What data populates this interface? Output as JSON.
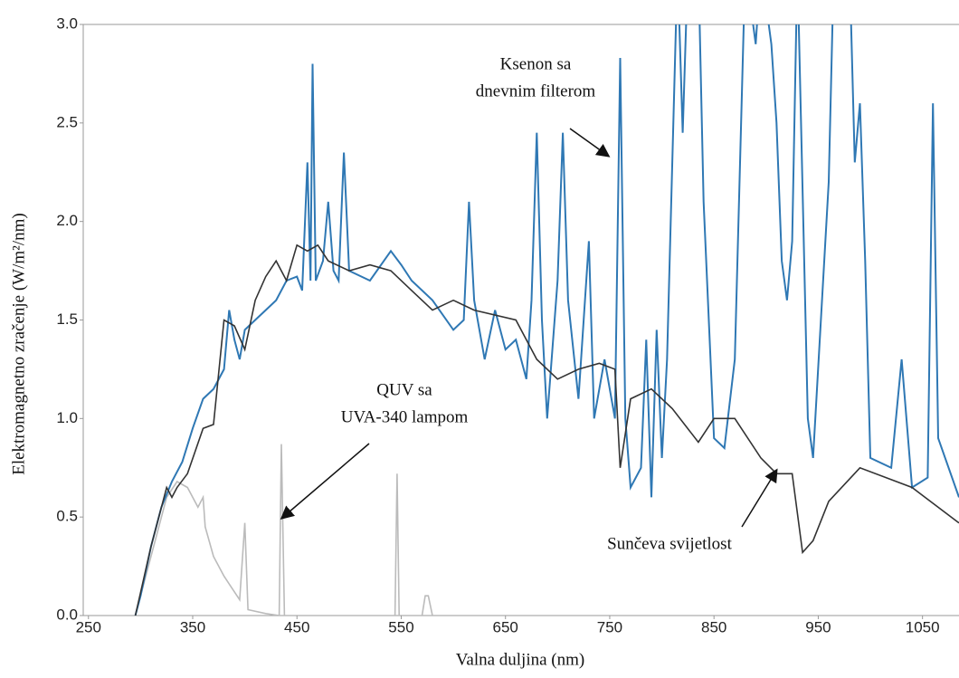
{
  "chart_data": {
    "type": "line",
    "x_label": "Valna duljina (nm)",
    "y_label": "Elektromagnetno zračenje  (W/m²/nm)",
    "xlim": [
      245,
      1085
    ],
    "xticks": [
      250,
      350,
      450,
      550,
      650,
      750,
      850,
      950,
      1050
    ],
    "ylim": [
      0,
      3
    ],
    "yticks": [
      {
        "value": 0,
        "label": "0.0"
      },
      0.5,
      {
        "value": 1,
        "label": "1.0"
      },
      1.5,
      {
        "value": 2,
        "label": "2.0"
      },
      2.5,
      {
        "value": 3,
        "label": "3.0"
      }
    ],
    "annotations": [
      {
        "lines": [
          "Ksenon sa",
          "dnevnim filterom"
        ]
      },
      {
        "lines": [
          "QUV sa",
          "UVA-340 lampom"
        ]
      },
      {
        "lines": [
          "Sunčeva svijetlost"
        ]
      }
    ],
    "series": [
      {
        "color": "#2f78b4",
        "x": [
          295,
          300,
          310,
          320,
          330,
          340,
          350,
          360,
          370,
          380,
          385,
          390,
          395,
          400,
          410,
          420,
          430,
          440,
          450,
          455,
          460,
          463,
          465,
          468,
          475,
          480,
          485,
          490,
          495,
          500,
          520,
          540,
          550,
          560,
          580,
          600,
          610,
          615,
          620,
          630,
          640,
          650,
          660,
          670,
          675,
          680,
          685,
          690,
          700,
          705,
          710,
          720,
          730,
          735,
          745,
          755,
          760,
          765,
          770,
          780,
          785,
          790,
          795,
          800,
          805,
          815,
          820,
          825,
          835,
          840,
          850,
          860,
          870,
          880,
          890,
          895,
          905,
          910,
          915,
          920,
          925,
          930,
          940,
          945,
          960,
          965,
          980,
          985,
          990,
          995,
          1000,
          1020,
          1030,
          1040,
          1055,
          1060,
          1065,
          1085
        ],
        "values": [
          0,
          0.1,
          0.35,
          0.55,
          0.68,
          0.78,
          0.95,
          1.1,
          1.15,
          1.25,
          1.55,
          1.4,
          1.3,
          1.45,
          1.5,
          1.55,
          1.6,
          1.7,
          1.72,
          1.65,
          2.3,
          1.7,
          2.8,
          1.7,
          1.8,
          2.1,
          1.75,
          1.7,
          2.35,
          1.75,
          1.7,
          1.85,
          1.78,
          1.7,
          1.6,
          1.45,
          1.5,
          2.1,
          1.6,
          1.3,
          1.55,
          1.35,
          1.4,
          1.2,
          1.6,
          2.45,
          1.5,
          1.0,
          1.7,
          2.45,
          1.6,
          1.1,
          1.9,
          1.0,
          1.3,
          1.0,
          2.83,
          1.0,
          0.65,
          0.75,
          1.4,
          0.6,
          1.45,
          0.8,
          1.3,
          3.3,
          2.45,
          3.3,
          3.3,
          2.1,
          0.9,
          0.85,
          1.3,
          3.3,
          2.9,
          3.3,
          2.9,
          2.5,
          1.8,
          1.6,
          1.9,
          3.3,
          1.0,
          0.8,
          2.2,
          3.3,
          3.3,
          2.3,
          2.6,
          1.8,
          0.8,
          0.75,
          1.3,
          0.65,
          0.7,
          2.6,
          0.9,
          0.6
        ]
      },
      {
        "color": "#333333",
        "x": [
          295,
          310,
          325,
          330,
          335,
          345,
          360,
          370,
          380,
          390,
          400,
          410,
          420,
          430,
          440,
          450,
          460,
          470,
          480,
          500,
          520,
          540,
          560,
          580,
          600,
          620,
          660,
          680,
          700,
          720,
          740,
          755,
          760,
          770,
          790,
          810,
          835,
          850,
          870,
          895,
          910,
          925,
          935,
          945,
          960,
          990,
          1040,
          1085
        ],
        "values": [
          0,
          0.35,
          0.65,
          0.6,
          0.65,
          0.72,
          0.95,
          0.97,
          1.5,
          1.47,
          1.35,
          1.6,
          1.72,
          1.8,
          1.7,
          1.88,
          1.85,
          1.88,
          1.8,
          1.75,
          1.78,
          1.75,
          1.65,
          1.55,
          1.6,
          1.55,
          1.5,
          1.3,
          1.2,
          1.25,
          1.28,
          1.25,
          0.75,
          1.1,
          1.15,
          1.05,
          0.88,
          1.0,
          1.0,
          0.8,
          0.72,
          0.72,
          0.32,
          0.38,
          0.58,
          0.75,
          0.65,
          0.47
        ]
      },
      {
        "color": "#bbbbbb",
        "x": [
          295,
          310,
          325,
          335,
          345,
          355,
          360,
          362,
          370,
          380,
          395,
          400,
          403,
          420,
          433,
          435,
          438,
          450,
          544,
          546,
          548,
          570,
          573,
          576,
          580,
          600
        ],
        "values": [
          0,
          0.3,
          0.6,
          0.68,
          0.65,
          0.55,
          0.6,
          0.45,
          0.3,
          0.2,
          0.08,
          0.47,
          0.03,
          0.01,
          0,
          0.87,
          0,
          0,
          0,
          0.72,
          0,
          0,
          0.1,
          0.1,
          0,
          0
        ]
      }
    ]
  }
}
